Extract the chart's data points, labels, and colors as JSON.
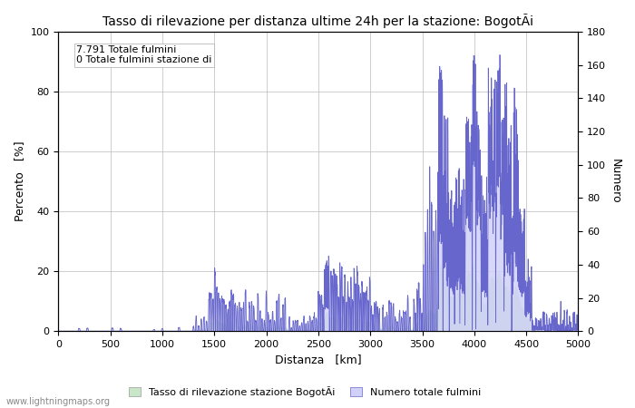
{
  "title": "Tasso di rilevazione per distanza ultime 24h per la stazione: BogotÃi",
  "xlabel": "Distanza   [km]",
  "ylabel_left": "Percento   [%]",
  "ylabel_right": "Numero",
  "annotation_line1": "7.791 Totale fulmini",
  "annotation_line2": "0 Totale fulmini stazione di",
  "legend_green": "Tasso di rilevazione stazione BogotÃi",
  "legend_blue": "Numero totale fulmini",
  "watermark": "www.lightningmaps.org",
  "xlim": [
    0,
    5000
  ],
  "ylim_left": [
    0,
    100
  ],
  "ylim_right": [
    0,
    180
  ],
  "xticks": [
    0,
    500,
    1000,
    1500,
    2000,
    2500,
    3000,
    3500,
    4000,
    4500,
    5000
  ],
  "yticks_left": [
    0,
    20,
    40,
    60,
    80,
    100
  ],
  "yticks_right": [
    0,
    20,
    40,
    60,
    80,
    100,
    120,
    140,
    160,
    180
  ],
  "background_color": "#ffffff",
  "grid_color": "#bbbbbb",
  "fill_green_color": "#c8e6c8",
  "fill_blue_color": "#d0d0f8",
  "line_blue_color": "#6666cc",
  "figsize": [
    7.0,
    4.5
  ],
  "dpi": 100
}
